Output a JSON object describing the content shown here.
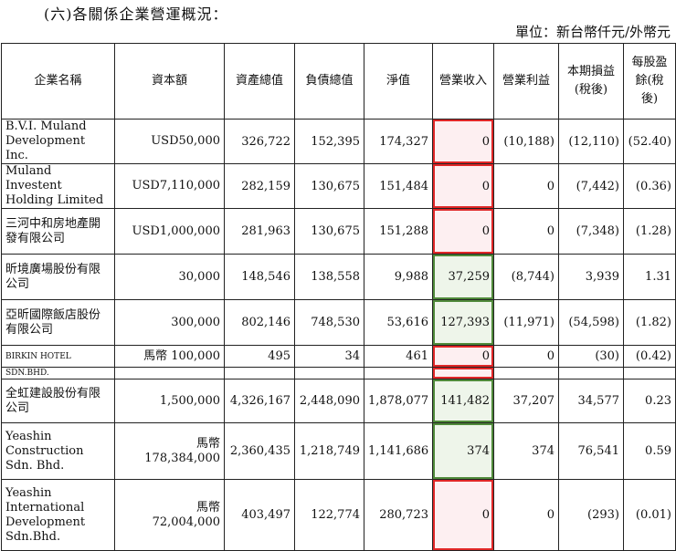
{
  "heading": "(六)各關係企業營運概況：",
  "unit": "單位：新台幣仟元/外幣元",
  "columns": [
    "企業名稱",
    "資本額",
    "資產總值",
    "負債總值",
    "淨值",
    "營業收入",
    "營業利益",
    "本期損益(稅後)",
    "每股盈餘(稅後)"
  ],
  "rows": [
    {
      "name": "B.V.I. Muland Development Inc.",
      "capital": "USD50,000",
      "assets": "326,722",
      "liabilities": "152,395",
      "equity": "174,327",
      "revenue": "0",
      "op_income": "(10,188)",
      "net_income": "(12,110)",
      "eps": "(52.40)",
      "flag": "red"
    },
    {
      "name": "Muland Investent Holding Limited",
      "capital": "USD7,110,000",
      "assets": "282,159",
      "liabilities": "130,675",
      "equity": "151,484",
      "revenue": "0",
      "op_income": "0",
      "net_income": "(7,442)",
      "eps": "(0.36)",
      "flag": "red"
    },
    {
      "name": "三河中和房地產開發有限公司",
      "capital": "USD1,000,000",
      "assets": "281,963",
      "liabilities": "130,675",
      "equity": "151,288",
      "revenue": "0",
      "op_income": "0",
      "net_income": "(7,348)",
      "eps": "(1.28)",
      "flag": "red"
    },
    {
      "name": "昕境廣場股份有限公司",
      "capital": "30,000",
      "assets": "148,546",
      "liabilities": "138,558",
      "equity": "9,988",
      "revenue": "37,259",
      "op_income": "(8,744)",
      "net_income": "3,939",
      "eps": "1.31",
      "flag": "green"
    },
    {
      "name": "亞昕國際飯店股份有限公司",
      "capital": "300,000",
      "assets": "802,146",
      "liabilities": "748,530",
      "equity": "53,616",
      "revenue": "127,393",
      "op_income": "(11,971)",
      "net_income": "(54,598)",
      "eps": "(1.82)",
      "flag": "green"
    },
    {
      "name": "BIRKIN HOTEL",
      "name_cont": "SDN.BHD.",
      "capital": "馬幣 100,000",
      "assets": "495",
      "liabilities": "34",
      "equity": "461",
      "revenue": "0",
      "op_income": "0",
      "net_income": "(30)",
      "eps": "(0.42)",
      "flag": "red"
    },
    {
      "name": "全虹建設股份有限公司",
      "capital": "1,500,000",
      "assets": "4,326,167",
      "liabilities": "2,448,090",
      "equity": "1,878,077",
      "revenue": "141,482",
      "op_income": "37,207",
      "net_income": "34,577",
      "eps": "0.23",
      "flag": "green"
    },
    {
      "name": "Yeashin Construction Sdn. Bhd.",
      "capital_cur": "馬幣",
      "capital": "178,384,000",
      "assets": "2,360,435",
      "liabilities": "1,218,749",
      "equity": "1,141,686",
      "revenue": "374",
      "op_income": "374",
      "net_income": "76,541",
      "eps": "0.59",
      "flag": "green"
    },
    {
      "name": "Yeashin International Development Sdn.Bhd.",
      "capital_cur": "馬幣",
      "capital": "72,004,000",
      "assets": "403,497",
      "liabilities": "122,774",
      "equity": "280,723",
      "revenue": "0",
      "op_income": "0",
      "net_income": "(293)",
      "eps": "(0.01)",
      "flag": "red"
    }
  ]
}
